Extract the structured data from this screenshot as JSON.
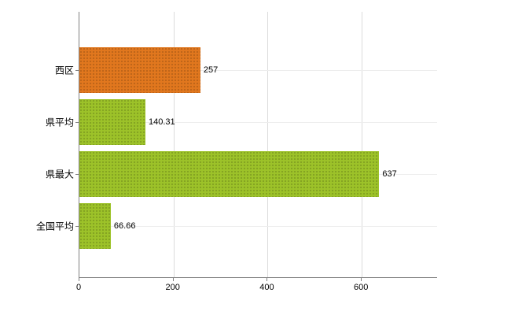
{
  "chart_data": {
    "type": "bar",
    "orientation": "horizontal",
    "title": "",
    "categories": [
      "西区",
      "県平均",
      "県最大",
      "全国平均"
    ],
    "values": [
      257,
      140.31,
      637,
      66.66
    ],
    "value_labels": [
      "257",
      "140.31",
      "637",
      "66.66"
    ],
    "bar_colors": [
      "#e1771e",
      "#9dc229",
      "#9dc229",
      "#9dc229"
    ],
    "xlim": [
      0,
      760
    ],
    "xticks": [
      0,
      200,
      400,
      600
    ],
    "xtick_labels": [
      "0",
      "200",
      "400",
      "600"
    ],
    "grid": "vertical-light",
    "legend": "none"
  },
  "colors": {
    "axis": "#808080",
    "grid": "#dcdcdc",
    "row_grid": "#ededed",
    "background": "#ffffff",
    "text": "#000000"
  }
}
